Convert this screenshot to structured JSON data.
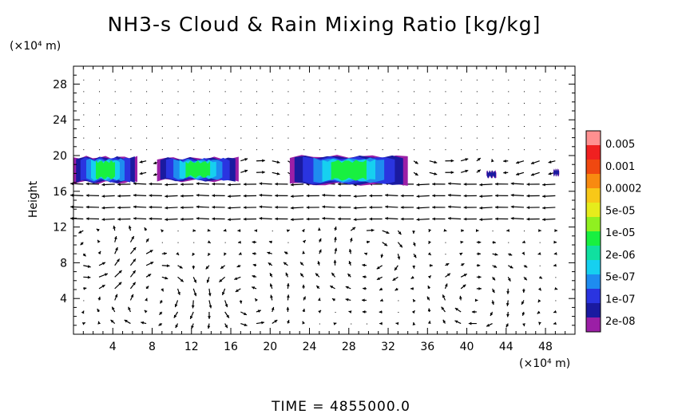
{
  "chart_data": {
    "type": "heatmap",
    "title": "NH3-s Cloud & Rain Mixing Ratio [kg/kg]",
    "ylabel": "Height",
    "y_unit": "(×10⁴ m)",
    "x_unit": "(×10⁴ m)",
    "xlim": [
      0,
      51
    ],
    "ylim": [
      0,
      30
    ],
    "x_ticks": [
      "4",
      "8",
      "12",
      "16",
      "20",
      "24",
      "28",
      "32",
      "36",
      "40",
      "44",
      "48"
    ],
    "y_ticks": [
      "4",
      "8",
      "12",
      "16",
      "20",
      "24",
      "28"
    ],
    "colorbar": {
      "labels": [
        "0.005",
        "0.001",
        "0.0002",
        "5e-05",
        "1e-05",
        "2e-06",
        "5e-07",
        "1e-07",
        "2e-08"
      ],
      "colors": [
        "#9b1fa6",
        "#1a1aa0",
        "#2a34e0",
        "#1e8cf0",
        "#16d0f0",
        "#10e0a0",
        "#18f040",
        "#90f020",
        "#e6ec1c",
        "#f8c818",
        "#f88a10",
        "#f04810",
        "#f02020",
        "#ff9090"
      ]
    },
    "cloud_patches": [
      {
        "x0": 0.0,
        "x1": 6.5,
        "y0": 17.0,
        "y1": 19.8
      },
      {
        "x0": 8.5,
        "x1": 16.8,
        "y0": 17.2,
        "y1": 19.7
      },
      {
        "x0": 22.0,
        "x1": 34.0,
        "y0": 16.8,
        "y1": 19.9
      },
      {
        "x0": 42.0,
        "x1": 43.0,
        "y0": 17.6,
        "y1": 18.2
      },
      {
        "x0": 48.8,
        "x1": 49.4,
        "y0": 17.8,
        "y1": 18.4
      }
    ],
    "background": "vector wind field"
  },
  "footer": {
    "time_label": "TIME  =  4855000.0"
  }
}
